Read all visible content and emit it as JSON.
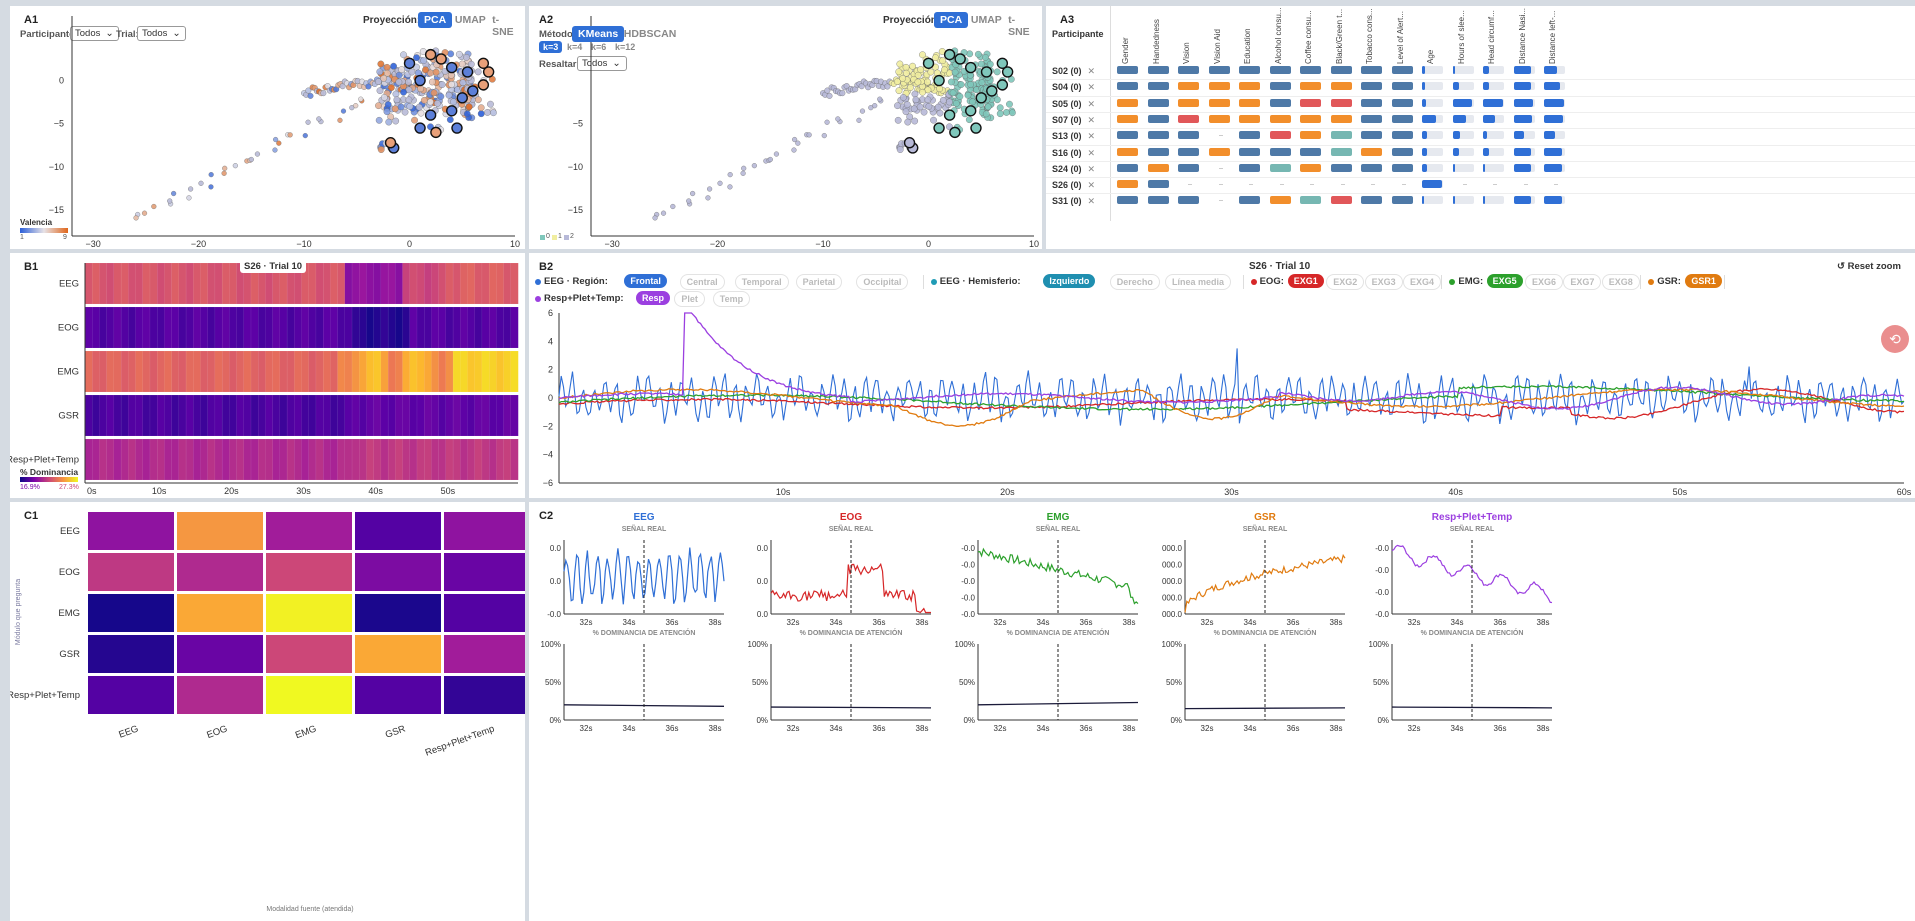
{
  "labels": {
    "A1": "A1",
    "A2": "A2",
    "A3": "A3",
    "B1": "B1",
    "B2": "B2",
    "C1": "C1",
    "C2": "C2"
  },
  "a1": {
    "proj_label": "Proyección:",
    "proj_tabs": [
      "PCA",
      "UMAP",
      "t-SNE"
    ],
    "proj_active": 0,
    "participant_label": "Participante:",
    "participant_value": "Todos",
    "trial_label": "Trial:",
    "trial_value": "Todos",
    "legend_title": "Valencia",
    "legend_min": "1",
    "legend_max": "9",
    "x_ticks": [
      -30,
      -20,
      -10,
      0,
      10
    ],
    "y_ticks": [
      0,
      -5,
      -10,
      -15
    ],
    "xlim": [
      -32,
      10
    ],
    "ylim": [
      -18,
      4
    ],
    "colors": {
      "low": "#2b5fd9",
      "mid": "#e7e2e6",
      "high": "#e0661b"
    }
  },
  "a2": {
    "method_label": "Método:",
    "method_tabs": [
      "KMeans",
      "HDBSCAN"
    ],
    "method_active": 0,
    "k_tabs": [
      "k=3",
      "k=4",
      "k=6",
      "k=12"
    ],
    "k_active": 0,
    "highlight_label": "Resaltar:",
    "highlight_value": "Todos",
    "proj_label": "Proyección:",
    "proj_tabs": [
      "PCA",
      "UMAP",
      "t-SNE"
    ],
    "proj_active": 0,
    "legend_items": [
      "0",
      "1",
      "2"
    ],
    "cluster_colors": [
      "#7fc7bb",
      "#f1eea0",
      "#b7b9d8"
    ],
    "x_ticks": [
      -30,
      -20,
      -10,
      0,
      10
    ],
    "y_ticks": [
      -5,
      -10,
      -15
    ],
    "xlim": [
      -32,
      10
    ],
    "ylim": [
      -18,
      4
    ]
  },
  "a3": {
    "participant_header": "Participante",
    "columns": [
      "Gender",
      "Handedness",
      "Vision",
      "Vision Aid",
      "Education",
      "Alcohol consu...",
      "Coffee consu...",
      "Black/Green t...",
      "Tobacco cons...",
      "Level of Alert...",
      "Age",
      "Hours of slee...",
      "Head circumf...",
      "Distance Nasi...",
      "Distance left-..."
    ],
    "rows": [
      {
        "id": "S02 (0)",
        "cats": [
          "b",
          "b",
          "b",
          "b",
          "b",
          "b",
          "b",
          "b",
          "b",
          "b"
        ],
        "nums": [
          0.12,
          0.1,
          0.3,
          0.85,
          0.6
        ]
      },
      {
        "id": "S04 (0)",
        "cats": [
          "b",
          "b",
          "o",
          "o",
          "o",
          "b",
          "o",
          "o",
          "b",
          "b"
        ],
        "nums": [
          0.15,
          0.3,
          0.3,
          0.85,
          0.75
        ]
      },
      {
        "id": "S05 (0)",
        "cats": [
          "o",
          "b",
          "o",
          "o",
          "o",
          "b",
          "r",
          "r",
          "b",
          "b"
        ],
        "nums": [
          0.2,
          0.95,
          0.95,
          0.95,
          0.95
        ]
      },
      {
        "id": "S07 (0)",
        "cats": [
          "o",
          "b",
          "r",
          "o",
          "o",
          "o",
          "o",
          "o",
          "b",
          "b"
        ],
        "nums": [
          0.65,
          0.65,
          0.55,
          0.9,
          0.9
        ]
      },
      {
        "id": "S13 (0)",
        "cats": [
          "b",
          "b",
          "b",
          "-",
          "b",
          "r",
          "o",
          "t",
          "b",
          "b"
        ],
        "nums": [
          0.25,
          0.35,
          0.2,
          0.5,
          0.5
        ]
      },
      {
        "id": "S16 (0)",
        "cats": [
          "o",
          "b",
          "b",
          "o",
          "b",
          "b",
          "b",
          "t",
          "o",
          "b"
        ],
        "nums": [
          0.25,
          0.3,
          0.3,
          0.85,
          0.85
        ]
      },
      {
        "id": "S24 (0)",
        "cats": [
          "b",
          "o",
          "b",
          "-",
          "b",
          "t",
          "o",
          "b",
          "b",
          "b"
        ],
        "nums": [
          0.25,
          0.05,
          0.05,
          0.85,
          0.85
        ]
      },
      {
        "id": "S26 (0)",
        "cats": [
          "o",
          "b",
          "-",
          "-",
          "-",
          "-",
          "-",
          "-",
          "-",
          "-"
        ],
        "nums": [
          0.95,
          -1,
          -1,
          -1,
          -1
        ]
      },
      {
        "id": "S31 (0)",
        "cats": [
          "b",
          "b",
          "b",
          "-",
          "b",
          "o",
          "t",
          "r",
          "b",
          "b"
        ],
        "nums": [
          0.05,
          0.05,
          0.05,
          0.85,
          0.85
        ]
      }
    ],
    "cat_colors": {
      "b": "#4e79a7",
      "o": "#f28e2b",
      "r": "#e15759",
      "t": "#76b7b2"
    },
    "num_color": "#2f6fd6"
  },
  "b1": {
    "title": "S26 · Trial 10",
    "rows": [
      "EEG",
      "EOG",
      "EMG",
      "GSR",
      "Resp+Plet+Temp"
    ],
    "legend_title": "% Dominancia",
    "legend_min": "16.9%",
    "legend_max": "27.3%",
    "x_ticks": [
      "0s",
      "10s",
      "20s",
      "30s",
      "40s",
      "50s"
    ],
    "n_cols": 60
  },
  "b2": {
    "title": "S26 · Trial 10",
    "reset": "↺ Reset zoom",
    "groups": [
      {
        "label": "EEG · Región:",
        "dot": "#2f6fd6",
        "pills": [
          "Frontal",
          "Central",
          "Temporal",
          "Parietal",
          "Occipital"
        ],
        "on": 0,
        "oncolor": "#2f6fd6"
      },
      {
        "label": "EEG · Hemisferio:",
        "dot": "#1f9bb5",
        "pills": [
          "Izquierdo",
          "Derecho",
          "Línea media"
        ],
        "on": 0,
        "oncolor": "#1f8fb0"
      },
      {
        "label": "EOG:",
        "dot": "#d62728",
        "pills": [
          "EXG1",
          "EXG2",
          "EXG3",
          "EXG4"
        ],
        "on": 0,
        "oncolor": "#d62728"
      },
      {
        "label": "EMG:",
        "dot": "#2ca02c",
        "pills": [
          "EXG5",
          "EXG6",
          "EXG7",
          "EXG8"
        ],
        "on": 0,
        "oncolor": "#2ca02c"
      },
      {
        "label": "GSR:",
        "dot": "#e07b10",
        "pills": [
          "GSR1"
        ],
        "on": 0,
        "oncolor": "#e07b10"
      },
      {
        "label": "Resp+Plet+Temp:",
        "dot": "#9b3fe0",
        "pills": [
          "Resp",
          "Plet",
          "Temp"
        ],
        "on": 0,
        "oncolor": "#9b3fe0"
      }
    ],
    "y_ticks": [
      6,
      4,
      2,
      0,
      -2,
      -4,
      -6
    ],
    "ylim": [
      -6,
      6
    ],
    "x_ticks": [
      "10s",
      "20s",
      "30s",
      "40s",
      "50s",
      "60s"
    ],
    "xlim": [
      0,
      60
    ],
    "series_colors": [
      "#2f6fd6",
      "#d62728",
      "#2ca02c",
      "#e07b10",
      "#9b3fe0"
    ]
  },
  "c1": {
    "rows": [
      "EEG",
      "EOG",
      "EMG",
      "GSR",
      "Resp+Plet+Temp"
    ],
    "cols": [
      "EEG",
      "EOG",
      "EMG",
      "GSR",
      "Resp+Plet+Temp"
    ],
    "ylabel": "Módulo que pregunta",
    "xlabel": "Modalidad fuente (atendida)",
    "values": [
      [
        0.3,
        0.75,
        0.35,
        0.15,
        0.3
      ],
      [
        0.45,
        0.4,
        0.5,
        0.25,
        0.2
      ],
      [
        0.02,
        0.8,
        0.98,
        0.03,
        0.15
      ],
      [
        0.05,
        0.2,
        0.5,
        0.8,
        0.35
      ],
      [
        0.15,
        0.4,
        1.0,
        0.15,
        0.08
      ]
    ]
  },
  "c2": {
    "real_label": "SEÑAL REAL",
    "att_label": "% DOMINANCIA DE ATENCIÓN",
    "x_ticks": [
      "32s",
      "34s",
      "36s",
      "38s"
    ],
    "att_y_ticks": [
      "100%",
      "50%",
      "0%"
    ],
    "mods": [
      {
        "name": "EEG",
        "color": "#2f6fd6",
        "y_ticks": [
          "0.0",
          "0.0",
          "-0.0"
        ],
        "att": [
          0.2,
          0.18
        ]
      },
      {
        "name": "EOG",
        "color": "#d62728",
        "y_ticks": [
          "0.0",
          "0.0",
          "0.0"
        ],
        "att": [
          0.17,
          0.16
        ]
      },
      {
        "name": "EMG",
        "color": "#2ca02c",
        "y_ticks": [
          "-0.0",
          "-0.0",
          "-0.0",
          "-0.0",
          "-0.0"
        ],
        "att": [
          0.2,
          0.23
        ]
      },
      {
        "name": "GSR",
        "color": "#e07b10",
        "y_ticks": [
          "000.0",
          "000.0",
          "000.0",
          "000.0",
          "000.0"
        ],
        "att": [
          0.15,
          0.16
        ]
      },
      {
        "name": "Resp+Plet+Temp",
        "color": "#9b3fe0",
        "y_ticks": [
          "-0.0",
          "-0.0",
          "-0.0",
          "-0.0"
        ],
        "att": [
          0.17,
          0.16
        ]
      }
    ]
  },
  "chart_data": [
    {
      "type": "scatter",
      "panel": "A1",
      "xlim": [
        -32,
        10
      ],
      "ylim": [
        -18,
        4
      ],
      "legend_title": "Valencia",
      "legend_range": [
        1,
        9
      ]
    },
    {
      "type": "scatter",
      "panel": "A2",
      "xlim": [
        -32,
        10
      ],
      "ylim": [
        -18,
        4
      ],
      "clusters": [
        "0",
        "1",
        "2"
      ]
    },
    {
      "type": "heatmap",
      "panel": "B1",
      "title": "S26 · Trial 10",
      "rows": [
        "EEG",
        "EOG",
        "EMG",
        "GSR",
        "Resp+Plet+Temp"
      ],
      "x_range_s": [
        0,
        60
      ],
      "color_range": [
        "16.9%",
        "27.3%"
      ]
    },
    {
      "type": "line",
      "panel": "B2",
      "title": "S26 · Trial 10",
      "ylim": [
        -6,
        6
      ],
      "x_range_s": [
        0,
        60
      ]
    },
    {
      "type": "heatmap",
      "panel": "C1",
      "rows": [
        "EEG",
        "EOG",
        "EMG",
        "GSR",
        "Resp+Plet+Temp"
      ],
      "cols": [
        "EEG",
        "EOG",
        "EMG",
        "GSR",
        "Resp+Plet+Temp"
      ],
      "xlabel": "Modalidad fuente (atendida)",
      "ylabel": "Módulo que pregunta"
    },
    {
      "type": "line",
      "panel": "C2",
      "x_range_s": [
        31,
        38
      ],
      "series": [
        "EEG",
        "EOG",
        "EMG",
        "GSR",
        "Resp+Plet+Temp"
      ]
    }
  ]
}
